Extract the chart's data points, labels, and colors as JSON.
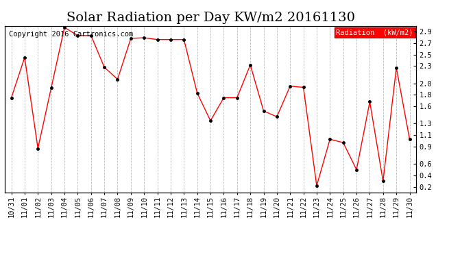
{
  "title": "Solar Radiation per Day KW/m2 20161130",
  "copyright": "Copyright 2016 Cartronics.com",
  "legend_label": "Radiation  (kW/m2)",
  "dates": [
    "10/31",
    "11/01",
    "11/02",
    "11/03",
    "11/04",
    "11/05",
    "11/06",
    "11/07",
    "11/08",
    "11/09",
    "11/10",
    "11/11",
    "11/12",
    "11/13",
    "11/14",
    "11/15",
    "11/16",
    "11/17",
    "11/18",
    "11/19",
    "11/20",
    "11/21",
    "11/22",
    "11/23",
    "11/24",
    "11/25",
    "11/26",
    "11/27",
    "11/28",
    "11/29",
    "11/30"
  ],
  "values": [
    1.75,
    2.45,
    0.87,
    1.92,
    2.97,
    2.83,
    2.83,
    2.28,
    2.07,
    2.78,
    2.79,
    2.76,
    2.76,
    2.76,
    1.83,
    1.35,
    1.75,
    1.75,
    2.32,
    1.52,
    1.42,
    1.95,
    1.93,
    0.22,
    1.03,
    0.97,
    0.5,
    1.68,
    0.3,
    2.27,
    1.03
  ],
  "line_color": "red",
  "marker_color": "black",
  "grid_color": "#bbbbbb",
  "background_color": "white",
  "ylim": [
    0.1,
    3.0
  ],
  "yticks": [
    0.2,
    0.4,
    0.6,
    0.9,
    1.1,
    1.3,
    1.6,
    1.8,
    2.0,
    2.3,
    2.5,
    2.7,
    2.9
  ],
  "legend_bg": "red",
  "legend_text_color": "white",
  "title_fontsize": 14,
  "tick_fontsize": 7.5,
  "copyright_fontsize": 7.5
}
